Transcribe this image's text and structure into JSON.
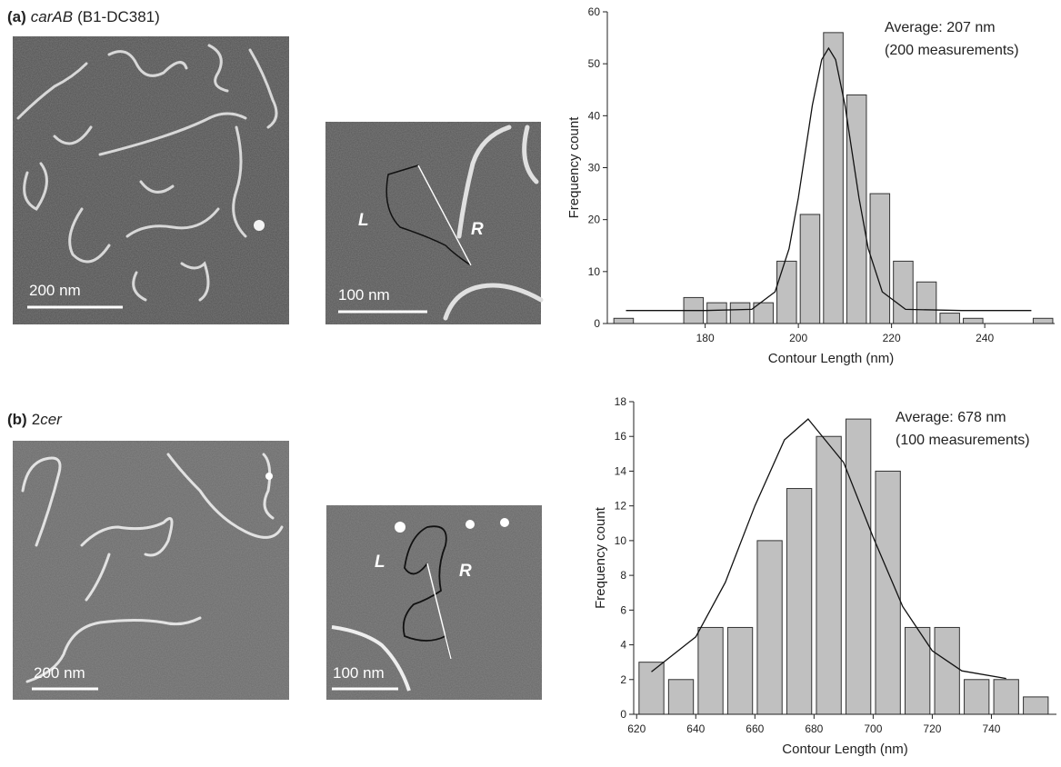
{
  "panels": [
    {
      "tag": "(a)",
      "title_parts": [
        {
          "text": "carAB",
          "italic": true
        },
        {
          "text": "(B1-DC381)"
        }
      ],
      "scale_bars": [
        "200 nm",
        "100 nm"
      ],
      "arm_labels": [
        "L",
        "R"
      ]
    },
    {
      "tag": "(b)",
      "title_parts": [
        {
          "text": "2"
        },
        {
          "text": "cer",
          "italic": true
        }
      ],
      "scale_bars": [
        "200 nm",
        "100 nm"
      ],
      "arm_labels": [
        "L",
        "R"
      ]
    }
  ],
  "chart_data": [
    {
      "type": "histogram",
      "color": "#c0c0c0",
      "bins": [
        160,
        165,
        170,
        175,
        180,
        185,
        190,
        195,
        200,
        205,
        210,
        215,
        220,
        225,
        230,
        235,
        240,
        245,
        250,
        255
      ],
      "values": [
        1,
        0,
        0,
        5,
        4,
        4,
        4,
        12,
        21,
        56,
        44,
        25,
        12,
        8,
        2,
        1,
        0,
        0,
        1
      ],
      "xlim": [
        159,
        255
      ],
      "ylim": [
        0,
        60
      ],
      "xticks": [
        180,
        200,
        220,
        240
      ],
      "yticks": [
        0,
        10,
        20,
        30,
        40,
        50,
        60
      ],
      "xlabel": "Contour Length (nm)",
      "ylabel": "Frequency count",
      "annotations": [
        "Average: 207 nm",
        "(200 measurements)"
      ],
      "fit": {
        "x": [
          163,
          180,
          190,
          195,
          198,
          200,
          203,
          205,
          206.5,
          208,
          210,
          213,
          215,
          218,
          223,
          235,
          250
        ],
        "y": [
          2.5,
          2.5,
          2.73,
          6.1,
          14.4,
          24.2,
          42.0,
          50.8,
          53,
          50.8,
          42.0,
          24.2,
          14.4,
          6.1,
          2.73,
          2.5,
          2.5
        ]
      }
    },
    {
      "type": "histogram",
      "color": "#c0c0c0",
      "bins": [
        620,
        630,
        640,
        650,
        660,
        670,
        680,
        690,
        700,
        710,
        720,
        730,
        740,
        750,
        760
      ],
      "values": [
        3,
        2,
        5,
        5,
        10,
        13,
        16,
        17,
        14,
        5,
        5,
        2,
        2,
        1
      ],
      "xlim": [
        619,
        762
      ],
      "ylim": [
        0,
        18
      ],
      "xticks": [
        620,
        640,
        660,
        680,
        700,
        720,
        740
      ],
      "yticks": [
        0,
        2,
        4,
        6,
        8,
        10,
        12,
        14,
        16,
        18
      ],
      "xlabel": "Contour Length (nm)",
      "ylabel": "Frequency count",
      "annotations": [
        "Average: 678 nm",
        "(100 measurements)"
      ],
      "fit": {
        "x": [
          625,
          640,
          650,
          660,
          670,
          678,
          690,
          700,
          710,
          720,
          730,
          745
        ],
        "y": [
          2.45,
          4.46,
          7.6,
          12.0,
          15.8,
          17,
          14.5,
          10.2,
          6.2,
          3.66,
          2.5,
          2.06
        ]
      }
    }
  ]
}
